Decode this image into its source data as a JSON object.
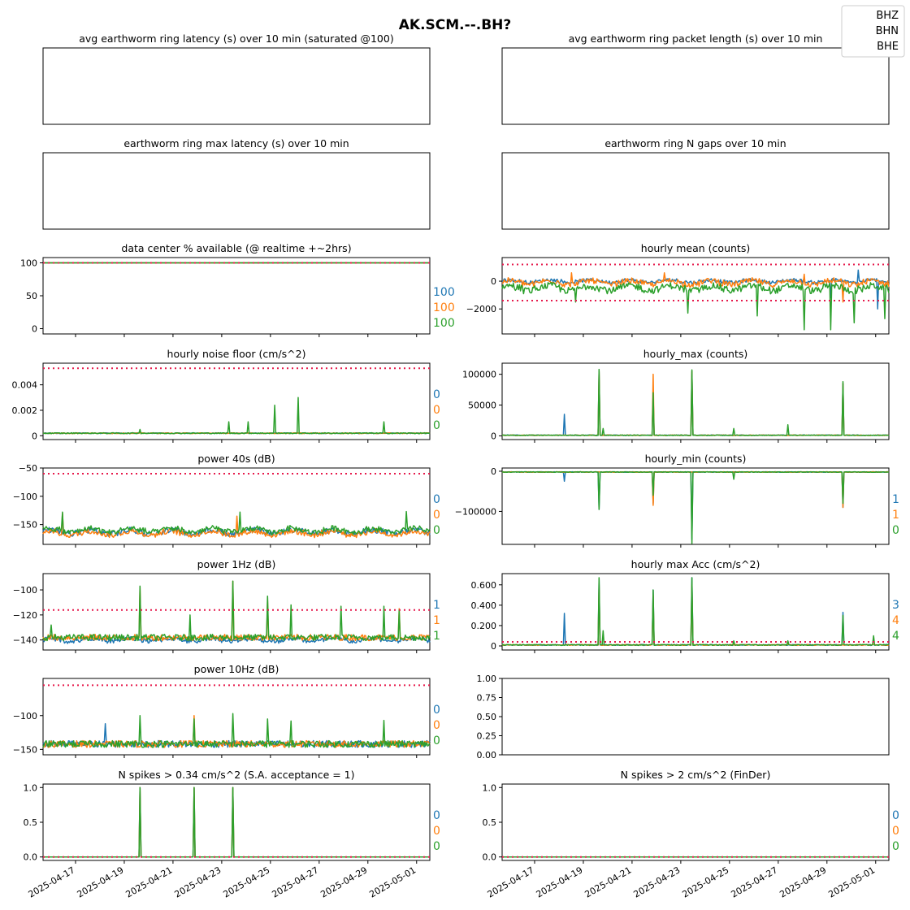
{
  "figure": {
    "title": "AK.SCM.--.BH?",
    "legend": {
      "placement": "top-right",
      "entries": [
        "BHZ",
        "BHN",
        "BHE"
      ]
    }
  },
  "colors": {
    "BHZ": "#1f77b4",
    "BHN": "#ff7f0e",
    "BHE": "#2ca02c",
    "threshold": "#e6194b"
  },
  "date_ticks": [
    "2025-04-17",
    "2025-04-19",
    "2025-04-21",
    "2025-04-23",
    "2025-04-25",
    "2025-04-27",
    "2025-04-29",
    "2025-05-01"
  ],
  "chart_data": [
    {
      "id": "p-latency",
      "type": "line",
      "title": "avg earthworm ring latency (s)   over 10 min (saturated @100)",
      "series": [],
      "yticks": [],
      "right_labels": []
    },
    {
      "id": "p-packet",
      "type": "line",
      "title": "avg earthworm ring packet length (s)   over 10 min",
      "series": [],
      "yticks": [],
      "right_labels": []
    },
    {
      "id": "p-maxlat",
      "type": "line",
      "title": "earthworm ring max latency (s)   over 10 min",
      "series": [],
      "yticks": [],
      "right_labels": []
    },
    {
      "id": "p-gaps",
      "type": "line",
      "title": "earthworm ring N gaps   over 10 min",
      "series": [],
      "yticks": [],
      "right_labels": []
    },
    {
      "id": "p-avail",
      "type": "line",
      "title": "data center % available (@ realtime +~2hrs)",
      "ylim": [
        -8,
        108
      ],
      "yticks": [
        0,
        50,
        100
      ],
      "thresholds": [
        100
      ],
      "series": [
        {
          "name": "BHZ",
          "gen": "flat",
          "base": 100
        },
        {
          "name": "BHN",
          "gen": "flat",
          "base": 100
        },
        {
          "name": "BHE",
          "gen": "flat",
          "base": 100
        }
      ],
      "right_labels": [
        "100",
        "100",
        "100"
      ]
    },
    {
      "id": "p-mean",
      "type": "line",
      "title": "hourly mean (counts)",
      "ylim": [
        -3800,
        1700
      ],
      "yticks": [
        0,
        -2000
      ],
      "thresholds": [
        1200,
        -1400
      ],
      "series": [
        {
          "name": "BHZ",
          "gen": "wave",
          "base": 0,
          "noise": 150,
          "spikes": [
            [
              0.92,
              800
            ],
            [
              0.97,
              -2000
            ],
            [
              0.85,
              -1200
            ]
          ]
        },
        {
          "name": "BHN",
          "gen": "wave",
          "base": -100,
          "noise": 250,
          "spikes": [
            [
              0.18,
              600
            ],
            [
              0.42,
              600
            ],
            [
              0.78,
              500
            ],
            [
              0.88,
              -1500
            ]
          ]
        },
        {
          "name": "BHE",
          "gen": "wave",
          "base": -500,
          "noise": 300,
          "spikes": [
            [
              0.19,
              -1500
            ],
            [
              0.48,
              -2300
            ],
            [
              0.66,
              -2500
            ],
            [
              0.78,
              -3500
            ],
            [
              0.85,
              -3500
            ],
            [
              0.91,
              -3000
            ],
            [
              0.99,
              -2700
            ]
          ]
        }
      ],
      "right_labels": []
    },
    {
      "id": "p-noise",
      "type": "line",
      "title": "hourly noise floor (cm/s^2)",
      "ylim": [
        -0.0003,
        0.0057
      ],
      "yticks": [
        0,
        0.002,
        0.004
      ],
      "thresholds": [
        0.0053
      ],
      "series": [
        {
          "name": "BHZ",
          "gen": "flat",
          "base": 0.0002,
          "noise": 3e-05
        },
        {
          "name": "BHN",
          "gen": "flat",
          "base": 0.0002,
          "noise": 3e-05
        },
        {
          "name": "BHE",
          "gen": "spiky",
          "base": 0.0002,
          "noise": 4e-05,
          "spikes": [
            [
              0.25,
              0.0005
            ],
            [
              0.48,
              0.0011
            ],
            [
              0.53,
              0.0011
            ],
            [
              0.6,
              0.0024
            ],
            [
              0.66,
              0.003
            ],
            [
              0.88,
              0.0011
            ]
          ]
        }
      ],
      "right_labels": [
        "0",
        "0",
        "0"
      ]
    },
    {
      "id": "p-hmax",
      "type": "line",
      "title": "hourly_max (counts)",
      "ylim": [
        -6000,
        118000
      ],
      "yticks": [
        0,
        50000,
        100000
      ],
      "thresholds": [],
      "series": [
        {
          "name": "BHZ",
          "gen": "spiky",
          "base": 1000,
          "noise": 500,
          "spikes": [
            [
              0.16,
              35000
            ],
            [
              0.25,
              105000
            ],
            [
              0.39,
              70000
            ],
            [
              0.49,
              105000
            ],
            [
              0.88,
              85000
            ]
          ]
        },
        {
          "name": "BHN",
          "gen": "spiky",
          "base": 1000,
          "noise": 500,
          "spikes": [
            [
              0.25,
              105000
            ],
            [
              0.39,
              100000
            ],
            [
              0.49,
              105000
            ],
            [
              0.88,
              85000
            ]
          ]
        },
        {
          "name": "BHE",
          "gen": "spiky",
          "base": 1000,
          "noise": 500,
          "spikes": [
            [
              0.25,
              108000
            ],
            [
              0.26,
              12000
            ],
            [
              0.39,
              70000
            ],
            [
              0.49,
              107000
            ],
            [
              0.6,
              12000
            ],
            [
              0.74,
              18000
            ],
            [
              0.88,
              88000
            ]
          ]
        }
      ],
      "right_labels": []
    },
    {
      "id": "p-power40",
      "type": "line",
      "title": "power 40s (dB)",
      "ylim": [
        -185,
        -50
      ],
      "yticks": [
        -50,
        -100,
        -150
      ],
      "thresholds": [
        -60
      ],
      "series": [
        {
          "name": "BHZ",
          "gen": "wave",
          "base": -163,
          "noise": 6
        },
        {
          "name": "BHN",
          "gen": "wave",
          "base": -165,
          "noise": 6,
          "spikes": [
            [
              0.05,
              -130
            ],
            [
              0.5,
              -135
            ]
          ]
        },
        {
          "name": "BHE",
          "gen": "wave",
          "base": -160,
          "noise": 6,
          "spikes": [
            [
              0.05,
              -128
            ],
            [
              0.51,
              -128
            ],
            [
              0.94,
              -127
            ]
          ]
        }
      ],
      "right_labels": [
        "0",
        "0",
        "0"
      ]
    },
    {
      "id": "p-hmin",
      "type": "line",
      "title": "hourly_min (counts)",
      "ylim": [
        -182000,
        8000
      ],
      "yticks": [
        0,
        -100000
      ],
      "thresholds": [],
      "series": [
        {
          "name": "BHZ",
          "gen": "spiky",
          "base": -2000,
          "noise": 800,
          "spikes": [
            [
              0.16,
              -25000
            ],
            [
              0.25,
              -95000
            ],
            [
              0.39,
              -80000
            ],
            [
              0.49,
              -170000
            ],
            [
              0.88,
              -90000
            ]
          ]
        },
        {
          "name": "BHN",
          "gen": "spiky",
          "base": -2000,
          "noise": 800,
          "spikes": [
            [
              0.39,
              -85000
            ],
            [
              0.88,
              -90000
            ]
          ]
        },
        {
          "name": "BHE",
          "gen": "spiky",
          "base": -2000,
          "noise": 800,
          "spikes": [
            [
              0.25,
              -95000
            ],
            [
              0.39,
              -60000
            ],
            [
              0.49,
              -180000
            ],
            [
              0.6,
              -20000
            ],
            [
              0.88,
              -80000
            ]
          ]
        }
      ],
      "right_labels": [
        "1",
        "1",
        "0"
      ]
    },
    {
      "id": "p-power1",
      "type": "line",
      "title": "power 1Hz (dB)",
      "ylim": [
        -148,
        -87
      ],
      "yticks": [
        -100,
        -120,
        -140
      ],
      "thresholds": [
        -116
      ],
      "series": [
        {
          "name": "BHZ",
          "gen": "wave",
          "base": -140,
          "noise": 2
        },
        {
          "name": "BHN",
          "gen": "spiky",
          "base": -138,
          "noise": 2.5,
          "spikes": [
            [
              0.25,
              -98
            ],
            [
              0.49,
              -93
            ],
            [
              0.58,
              -108
            ],
            [
              0.92,
              -115
            ]
          ]
        },
        {
          "name": "BHE",
          "gen": "spiky",
          "base": -138,
          "noise": 2.5,
          "spikes": [
            [
              0.02,
              -128
            ],
            [
              0.25,
              -97
            ],
            [
              0.38,
              -120
            ],
            [
              0.49,
              -93
            ],
            [
              0.58,
              -105
            ],
            [
              0.64,
              -112
            ],
            [
              0.77,
              -113
            ],
            [
              0.88,
              -113
            ],
            [
              0.92,
              -116
            ]
          ]
        }
      ],
      "right_labels": [
        "1",
        "1",
        "1"
      ]
    },
    {
      "id": "p-hmaxacc",
      "type": "line",
      "title": "hourly max Acc (cm/s^2)",
      "ylim": [
        -0.04,
        0.71
      ],
      "yticks": [
        0,
        0.2,
        0.4,
        0.6
      ],
      "thresholds": [
        0.04
      ],
      "series": [
        {
          "name": "BHZ",
          "gen": "spiky",
          "base": 0.01,
          "noise": 0.005,
          "spikes": [
            [
              0.16,
              0.32
            ],
            [
              0.25,
              0.65
            ],
            [
              0.39,
              0.55
            ],
            [
              0.49,
              0.67
            ],
            [
              0.88,
              0.33
            ]
          ]
        },
        {
          "name": "BHN",
          "gen": "spiky",
          "base": 0.01,
          "noise": 0.005,
          "spikes": [
            [
              0.25,
              0.6
            ],
            [
              0.39,
              0.5
            ],
            [
              0.49,
              0.6
            ]
          ]
        },
        {
          "name": "BHE",
          "gen": "spiky",
          "base": 0.01,
          "noise": 0.005,
          "spikes": [
            [
              0.25,
              0.67
            ],
            [
              0.26,
              0.15
            ],
            [
              0.39,
              0.55
            ],
            [
              0.49,
              0.67
            ],
            [
              0.6,
              0.05
            ],
            [
              0.74,
              0.05
            ],
            [
              0.88,
              0.3
            ],
            [
              0.96,
              0.1
            ]
          ]
        }
      ],
      "right_labels": [
        "3",
        "4",
        "4"
      ]
    },
    {
      "id": "p-power10",
      "type": "line",
      "title": "power 10Hz (dB)",
      "ylim": [
        -158,
        -45
      ],
      "yticks": [
        -100,
        -150
      ],
      "thresholds": [
        -55
      ],
      "series": [
        {
          "name": "BHZ",
          "gen": "spiky",
          "base": -142,
          "noise": 5,
          "spikes": [
            [
              0.16,
              -112
            ]
          ]
        },
        {
          "name": "BHN",
          "gen": "spiky",
          "base": -142,
          "noise": 5,
          "spikes": [
            [
              0.39,
              -100
            ]
          ]
        },
        {
          "name": "BHE",
          "gen": "spiky",
          "base": -142,
          "noise": 5,
          "spikes": [
            [
              0.25,
              -100
            ],
            [
              0.39,
              -105
            ],
            [
              0.49,
              -97
            ],
            [
              0.58,
              -105
            ],
            [
              0.64,
              -108
            ],
            [
              0.88,
              -107
            ]
          ]
        }
      ],
      "right_labels": [
        "0",
        "0",
        "0"
      ]
    },
    {
      "id": "p-empty",
      "type": "line",
      "title": "",
      "ylim": [
        0,
        1
      ],
      "yticks": [
        0,
        0.25,
        0.5,
        0.75,
        1
      ],
      "tick_decimals": 2,
      "thresholds": [],
      "series": [],
      "right_labels": []
    },
    {
      "id": "p-spikes034",
      "type": "line",
      "title": "N spikes > 0.34 cm/s^2 (S.A. acceptance = 1)",
      "ylim": [
        -0.05,
        1.05
      ],
      "yticks": [
        0,
        0.5,
        1
      ],
      "tick_decimals": 1,
      "thresholds": [
        0
      ],
      "xaxis": true,
      "series": [
        {
          "name": "BHZ",
          "gen": "zero",
          "base": 0,
          "spikes": [
            [
              0.25,
              1
            ],
            [
              0.39,
              1
            ],
            [
              0.49,
              1
            ]
          ]
        },
        {
          "name": "BHN",
          "gen": "zero",
          "base": 0,
          "spikes": [
            [
              0.25,
              1
            ],
            [
              0.39,
              1
            ],
            [
              0.49,
              1
            ]
          ]
        },
        {
          "name": "BHE",
          "gen": "zero",
          "base": 0,
          "spikes": [
            [
              0.25,
              1
            ],
            [
              0.39,
              1
            ],
            [
              0.49,
              1
            ]
          ]
        }
      ],
      "right_labels": [
        "0",
        "0",
        "0"
      ]
    },
    {
      "id": "p-spikes2",
      "type": "line",
      "title": "N spikes > 2 cm/s^2 (FinDer)",
      "ylim": [
        -0.05,
        1.05
      ],
      "yticks": [
        0,
        0.5,
        1
      ],
      "tick_decimals": 1,
      "thresholds": [
        0
      ],
      "xaxis": true,
      "series": [
        {
          "name": "BHZ",
          "gen": "zero",
          "base": 0
        },
        {
          "name": "BHN",
          "gen": "zero",
          "base": 0
        },
        {
          "name": "BHE",
          "gen": "zero",
          "base": 0
        }
      ],
      "right_labels": [
        "0",
        "0",
        "0"
      ]
    }
  ]
}
